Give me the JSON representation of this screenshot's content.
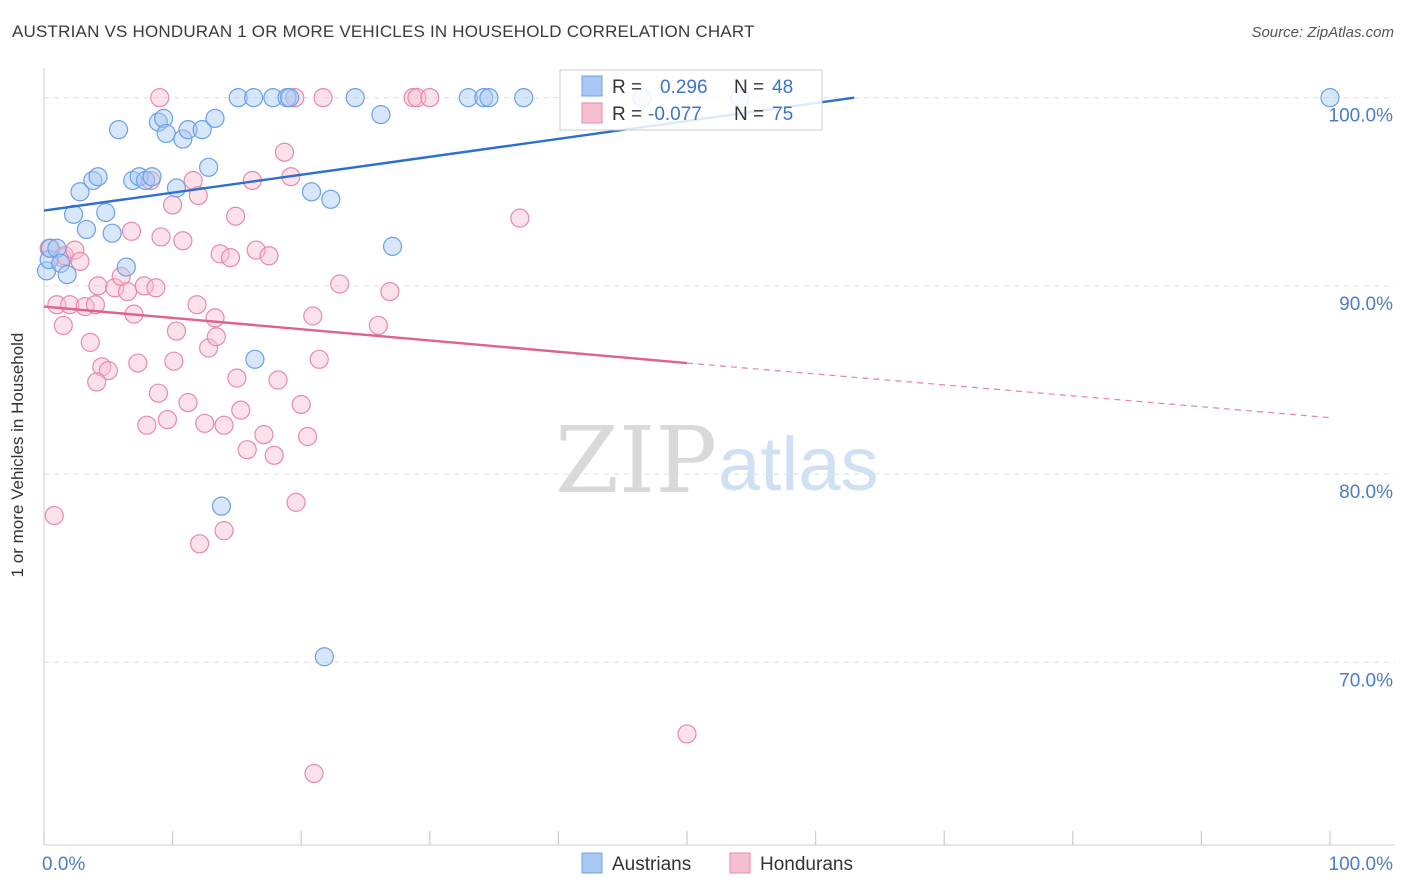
{
  "title": "AUSTRIAN VS HONDURAN 1 OR MORE VEHICLES IN HOUSEHOLD CORRELATION CHART",
  "source": "Source: ZipAtlas.com",
  "watermark": {
    "zip": "ZIP",
    "atlas": "atlas"
  },
  "colors": {
    "blue": "#6aa0e8",
    "blue_fill": "#a9c8f3",
    "blue_line": "#2b6fcf",
    "pink": "#e888aa",
    "pink_fill": "#f6bfd0",
    "pink_line": "#e0608e",
    "axis_text": "#4a7cc9",
    "grid": "#dddddd"
  },
  "legend": {
    "rows": [
      {
        "r_label": "R =",
        "r_value": "0.296",
        "n_label": "N =",
        "n_value": "48",
        "series": "blue"
      },
      {
        "r_label": "R =",
        "r_value": "-0.077",
        "n_label": "N =",
        "n_value": "75",
        "series": "pink"
      }
    ]
  },
  "bottom_legend": [
    {
      "label": "Austrians",
      "series": "blue"
    },
    {
      "label": "Hondurans",
      "series": "pink"
    }
  ],
  "chart_data": {
    "type": "scatter",
    "title": "AUSTRIAN VS HONDURAN 1 OR MORE VEHICLES IN HOUSEHOLD CORRELATION CHART",
    "xlabel": "",
    "ylabel": "1 or more Vehicles in Household",
    "xlim": [
      0,
      100
    ],
    "ylim": [
      60.3,
      102
    ],
    "x_tick_labels": [
      "0.0%",
      "100.0%"
    ],
    "y_ticks": [
      70,
      80,
      90,
      100
    ],
    "y_tick_labels": [
      "70.0%",
      "80.0%",
      "90.0%",
      "100.0%"
    ],
    "series": [
      {
        "name": "Austrians",
        "color": "blue",
        "R": 0.296,
        "N": 48,
        "trend": {
          "x0": 0,
          "y0": 94.0,
          "x1": 63,
          "y1": 100.0,
          "dashed_to": null
        },
        "points": [
          [
            0.2,
            90.8
          ],
          [
            0.4,
            91.4
          ],
          [
            0.5,
            92.0
          ],
          [
            1.0,
            92.0
          ],
          [
            1.3,
            91.2
          ],
          [
            1.8,
            90.6
          ],
          [
            2.3,
            93.8
          ],
          [
            2.8,
            95.0
          ],
          [
            3.3,
            93.0
          ],
          [
            3.8,
            95.6
          ],
          [
            4.2,
            95.8
          ],
          [
            4.8,
            93.9
          ],
          [
            5.3,
            92.8
          ],
          [
            5.8,
            98.3
          ],
          [
            6.4,
            91.0
          ],
          [
            6.9,
            95.6
          ],
          [
            7.4,
            95.8
          ],
          [
            7.9,
            95.6
          ],
          [
            8.4,
            95.8
          ],
          [
            8.9,
            98.7
          ],
          [
            9.3,
            98.9
          ],
          [
            9.5,
            98.1
          ],
          [
            10.3,
            95.2
          ],
          [
            10.8,
            97.8
          ],
          [
            11.2,
            98.3
          ],
          [
            12.3,
            98.3
          ],
          [
            12.8,
            96.3
          ],
          [
            13.3,
            98.9
          ],
          [
            13.8,
            78.3
          ],
          [
            15.1,
            100.0
          ],
          [
            16.3,
            100.0
          ],
          [
            16.4,
            86.1
          ],
          [
            17.8,
            100.0
          ],
          [
            18.9,
            100.0
          ],
          [
            19.1,
            100.0
          ],
          [
            20.8,
            95.0
          ],
          [
            21.8,
            70.3
          ],
          [
            22.3,
            94.6
          ],
          [
            24.2,
            100.0
          ],
          [
            26.2,
            99.1
          ],
          [
            27.1,
            92.1
          ],
          [
            33.0,
            100.0
          ],
          [
            34.2,
            100.0
          ],
          [
            34.6,
            100.0
          ],
          [
            37.3,
            100.0
          ],
          [
            46.5,
            100.0
          ],
          [
            54.1,
            100.0
          ],
          [
            100.0,
            100.0
          ]
        ]
      },
      {
        "name": "Hondurans",
        "color": "pink",
        "R": -0.077,
        "N": 75,
        "trend": {
          "x0": 0,
          "y0": 88.9,
          "x1": 50,
          "y1": 85.9,
          "dashed_to": {
            "x": 100,
            "y": 83.0
          }
        },
        "points": [
          [
            0.4,
            92.0
          ],
          [
            0.8,
            77.8
          ],
          [
            1.0,
            89.0
          ],
          [
            1.4,
            91.5
          ],
          [
            1.5,
            87.9
          ],
          [
            1.6,
            91.6
          ],
          [
            2.0,
            89.0
          ],
          [
            2.4,
            91.9
          ],
          [
            2.8,
            91.3
          ],
          [
            3.2,
            88.9
          ],
          [
            3.6,
            87.0
          ],
          [
            4.0,
            89.0
          ],
          [
            4.2,
            90.0
          ],
          [
            4.5,
            85.7
          ],
          [
            5.0,
            85.5
          ],
          [
            5.5,
            89.9
          ],
          [
            6.0,
            90.5
          ],
          [
            6.5,
            89.7
          ],
          [
            7.0,
            88.5
          ],
          [
            7.3,
            85.9
          ],
          [
            7.8,
            90.0
          ],
          [
            8.0,
            82.6
          ],
          [
            8.3,
            95.6
          ],
          [
            8.7,
            89.9
          ],
          [
            9.1,
            92.6
          ],
          [
            9.6,
            82.9
          ],
          [
            10.0,
            94.3
          ],
          [
            10.3,
            87.6
          ],
          [
            10.8,
            92.4
          ],
          [
            11.2,
            83.8
          ],
          [
            11.6,
            95.6
          ],
          [
            12.0,
            94.8
          ],
          [
            12.5,
            82.7
          ],
          [
            12.8,
            86.7
          ],
          [
            13.3,
            88.3
          ],
          [
            13.7,
            91.7
          ],
          [
            14.0,
            82.6
          ],
          [
            14.5,
            91.5
          ],
          [
            14.9,
            93.7
          ],
          [
            15.3,
            83.4
          ],
          [
            15.8,
            81.3
          ],
          [
            16.2,
            95.6
          ],
          [
            16.5,
            91.9
          ],
          [
            17.1,
            82.1
          ],
          [
            17.5,
            91.6
          ],
          [
            17.9,
            81.0
          ],
          [
            18.2,
            85.0
          ],
          [
            18.7,
            97.1
          ],
          [
            19.2,
            95.8
          ],
          [
            19.6,
            78.5
          ],
          [
            20.0,
            83.7
          ],
          [
            20.5,
            82.0
          ],
          [
            20.9,
            88.4
          ],
          [
            21.4,
            86.1
          ],
          [
            21.7,
            100.0
          ],
          [
            9.0,
            100.0
          ],
          [
            19.5,
            100.0
          ],
          [
            23.0,
            90.1
          ],
          [
            26.0,
            87.9
          ],
          [
            26.9,
            89.7
          ],
          [
            28.7,
            100.0
          ],
          [
            29.0,
            100.0
          ],
          [
            30.0,
            100.0
          ],
          [
            37.0,
            93.6
          ],
          [
            12.1,
            76.3
          ],
          [
            14.0,
            77.0
          ],
          [
            21.0,
            64.1
          ],
          [
            50.0,
            66.2
          ],
          [
            4.1,
            84.9
          ],
          [
            6.8,
            92.9
          ],
          [
            8.9,
            84.3
          ],
          [
            10.1,
            86.0
          ],
          [
            11.9,
            89.0
          ],
          [
            13.4,
            87.3
          ],
          [
            15.0,
            85.1
          ]
        ]
      }
    ]
  }
}
